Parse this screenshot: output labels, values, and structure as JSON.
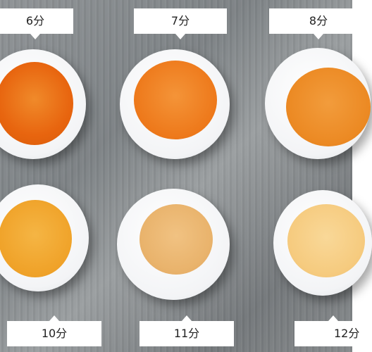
{
  "labels": {
    "egg_6": "6分",
    "egg_7": "7分",
    "egg_8": "8分",
    "egg_10": "10分",
    "egg_11": "11分",
    "egg_12": "12分"
  },
  "colors": {
    "yolk_6": "#e8650f",
    "yolk_7": "#ee7a1c",
    "yolk_8": "#ec8a24",
    "yolk_10": "#f0a32a",
    "yolk_11": "#e9b36c",
    "yolk_12": "#f6cb7f",
    "egg_white": "#f6f7f8",
    "tray": "#8a8e91"
  }
}
